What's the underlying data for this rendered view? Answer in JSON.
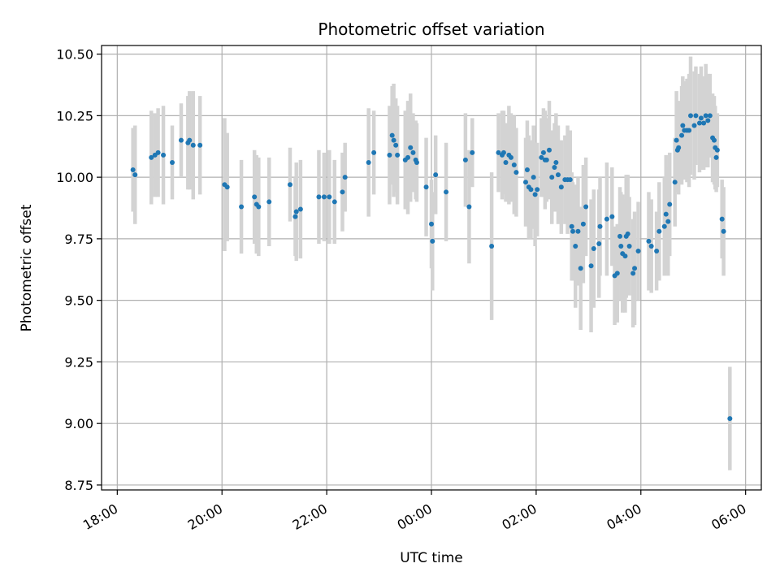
{
  "chart_data": {
    "type": "scatter",
    "title": "Photometric offset variation",
    "xlabel": "UTC time",
    "ylabel": "Photometric offset",
    "x_unit": "hours since 18:00 UTC",
    "xlim": [
      -0.3,
      12.3
    ],
    "ylim": [
      8.73,
      10.535
    ],
    "x_ticks": [
      0,
      2,
      4,
      6,
      8,
      10,
      12
    ],
    "x_tick_labels": [
      "18:00",
      "20:00",
      "22:00",
      "00:00",
      "02:00",
      "04:00",
      "06:00"
    ],
    "y_ticks": [
      8.75,
      9.0,
      9.25,
      9.5,
      9.75,
      10.0,
      10.25,
      10.5
    ],
    "y_tick_labels": [
      "8.75",
      "9.00",
      "9.25",
      "9.50",
      "9.75",
      "10.00",
      "10.25",
      "10.50"
    ],
    "grid": true,
    "marker_color": "#1f77b4",
    "errorbar_color": "#d3d3d3",
    "points": [
      [
        0.3,
        10.03,
        0.17
      ],
      [
        0.34,
        10.01,
        0.2
      ],
      [
        0.65,
        10.08,
        0.19
      ],
      [
        0.72,
        10.09,
        0.17
      ],
      [
        0.78,
        10.1,
        0.18
      ],
      [
        0.88,
        10.09,
        0.2
      ],
      [
        1.05,
        10.06,
        0.15
      ],
      [
        1.22,
        10.15,
        0.15
      ],
      [
        1.35,
        10.14,
        0.19
      ],
      [
        1.38,
        10.15,
        0.2
      ],
      [
        1.45,
        10.13,
        0.22
      ],
      [
        1.58,
        10.13,
        0.2
      ],
      [
        2.05,
        9.97,
        0.27
      ],
      [
        2.1,
        9.96,
        0.22
      ],
      [
        2.37,
        9.88,
        0.19
      ],
      [
        2.62,
        9.92,
        0.19
      ],
      [
        2.66,
        9.89,
        0.2
      ],
      [
        2.7,
        9.88,
        0.2
      ],
      [
        2.9,
        9.9,
        0.18
      ],
      [
        3.3,
        9.97,
        0.15
      ],
      [
        3.4,
        9.84,
        0.16
      ],
      [
        3.42,
        9.86,
        0.2
      ],
      [
        3.5,
        9.87,
        0.2
      ],
      [
        3.85,
        9.92,
        0.19
      ],
      [
        3.95,
        9.92,
        0.18
      ],
      [
        4.05,
        9.92,
        0.19
      ],
      [
        4.15,
        9.9,
        0.17
      ],
      [
        4.3,
        9.94,
        0.16
      ],
      [
        4.35,
        10.0,
        0.14
      ],
      [
        4.8,
        10.06,
        0.22
      ],
      [
        4.9,
        10.1,
        0.17
      ],
      [
        5.2,
        10.09,
        0.2
      ],
      [
        5.25,
        10.17,
        0.2
      ],
      [
        5.28,
        10.15,
        0.23
      ],
      [
        5.32,
        10.13,
        0.19
      ],
      [
        5.35,
        10.09,
        0.2
      ],
      [
        5.5,
        10.07,
        0.2
      ],
      [
        5.55,
        10.08,
        0.23
      ],
      [
        5.6,
        10.12,
        0.22
      ],
      [
        5.65,
        10.1,
        0.16
      ],
      [
        5.7,
        10.07,
        0.16
      ],
      [
        5.72,
        10.06,
        0.16
      ],
      [
        5.9,
        9.96,
        0.2
      ],
      [
        6.0,
        9.81,
        0.18
      ],
      [
        6.02,
        9.74,
        0.2
      ],
      [
        6.08,
        10.01,
        0.16
      ],
      [
        6.28,
        9.94,
        0.2
      ],
      [
        6.65,
        10.07,
        0.19
      ],
      [
        6.72,
        9.88,
        0.23
      ],
      [
        6.78,
        10.1,
        0.14
      ],
      [
        7.15,
        9.72,
        0.3
      ],
      [
        7.28,
        10.1,
        0.16
      ],
      [
        7.35,
        10.09,
        0.18
      ],
      [
        7.38,
        10.1,
        0.17
      ],
      [
        7.42,
        10.06,
        0.16
      ],
      [
        7.48,
        10.09,
        0.2
      ],
      [
        7.52,
        10.08,
        0.18
      ],
      [
        7.58,
        10.05,
        0.2
      ],
      [
        7.62,
        10.02,
        0.18
      ],
      [
        7.8,
        9.98,
        0.18
      ],
      [
        7.83,
        10.03,
        0.2
      ],
      [
        7.86,
        9.96,
        0.21
      ],
      [
        7.9,
        9.95,
        0.2
      ],
      [
        7.95,
        10.0,
        0.21
      ],
      [
        7.98,
        9.93,
        0.21
      ],
      [
        8.02,
        9.95,
        0.19
      ],
      [
        8.1,
        10.08,
        0.16
      ],
      [
        8.14,
        10.1,
        0.18
      ],
      [
        8.17,
        10.07,
        0.2
      ],
      [
        8.2,
        10.07,
        0.17
      ],
      [
        8.25,
        10.11,
        0.2
      ],
      [
        8.3,
        10.0,
        0.19
      ],
      [
        8.35,
        10.04,
        0.18
      ],
      [
        8.38,
        10.06,
        0.2
      ],
      [
        8.42,
        10.01,
        0.2
      ],
      [
        8.48,
        9.96,
        0.19
      ],
      [
        8.55,
        9.99,
        0.18
      ],
      [
        8.6,
        9.99,
        0.22
      ],
      [
        8.65,
        9.99,
        0.2
      ],
      [
        8.68,
        9.8,
        0.22
      ],
      [
        8.7,
        9.78,
        0.2
      ],
      [
        8.75,
        9.72,
        0.25
      ],
      [
        8.8,
        9.78,
        0.22
      ],
      [
        8.85,
        9.63,
        0.25
      ],
      [
        8.9,
        9.81,
        0.24
      ],
      [
        8.95,
        9.88,
        0.2
      ],
      [
        9.05,
        9.64,
        0.27
      ],
      [
        9.1,
        9.71,
        0.24
      ],
      [
        9.2,
        9.73,
        0.22
      ],
      [
        9.22,
        9.8,
        0.2
      ],
      [
        9.35,
        9.83,
        0.23
      ],
      [
        9.45,
        9.84,
        0.2
      ],
      [
        9.5,
        9.6,
        0.2
      ],
      [
        9.55,
        9.61,
        0.2
      ],
      [
        9.6,
        9.76,
        0.2
      ],
      [
        9.62,
        9.72,
        0.22
      ],
      [
        9.65,
        9.69,
        0.24
      ],
      [
        9.7,
        9.68,
        0.23
      ],
      [
        9.72,
        9.76,
        0.25
      ],
      [
        9.75,
        9.77,
        0.24
      ],
      [
        9.78,
        9.72,
        0.2
      ],
      [
        9.85,
        9.61,
        0.22
      ],
      [
        9.88,
        9.63,
        0.23
      ],
      [
        9.95,
        9.7,
        0.2
      ],
      [
        10.15,
        9.74,
        0.2
      ],
      [
        10.2,
        9.72,
        0.19
      ],
      [
        10.3,
        9.7,
        0.16
      ],
      [
        10.35,
        9.78,
        0.2
      ],
      [
        10.45,
        9.8,
        0.2
      ],
      [
        10.48,
        9.85,
        0.24
      ],
      [
        10.52,
        9.82,
        0.22
      ],
      [
        10.55,
        9.89,
        0.21
      ],
      [
        10.65,
        9.98,
        0.18
      ],
      [
        10.68,
        10.15,
        0.2
      ],
      [
        10.7,
        10.11,
        0.17
      ],
      [
        10.72,
        10.12,
        0.19
      ],
      [
        10.78,
        10.17,
        0.2
      ],
      [
        10.8,
        10.21,
        0.2
      ],
      [
        10.83,
        10.19,
        0.2
      ],
      [
        10.88,
        10.19,
        0.21
      ],
      [
        10.92,
        10.19,
        0.23
      ],
      [
        10.95,
        10.25,
        0.24
      ],
      [
        11.02,
        10.21,
        0.22
      ],
      [
        11.05,
        10.25,
        0.2
      ],
      [
        11.12,
        10.22,
        0.2
      ],
      [
        11.15,
        10.24,
        0.21
      ],
      [
        11.2,
        10.22,
        0.19
      ],
      [
        11.24,
        10.25,
        0.21
      ],
      [
        11.28,
        10.23,
        0.19
      ],
      [
        11.32,
        10.25,
        0.17
      ],
      [
        11.37,
        10.16,
        0.18
      ],
      [
        11.4,
        10.15,
        0.18
      ],
      [
        11.42,
        10.12,
        0.17
      ],
      [
        11.44,
        10.08,
        0.14
      ],
      [
        11.46,
        10.11,
        0.15
      ],
      [
        11.55,
        9.83,
        0.16
      ],
      [
        11.58,
        9.78,
        0.18
      ],
      [
        11.7,
        9.02,
        0.21
      ]
    ]
  }
}
